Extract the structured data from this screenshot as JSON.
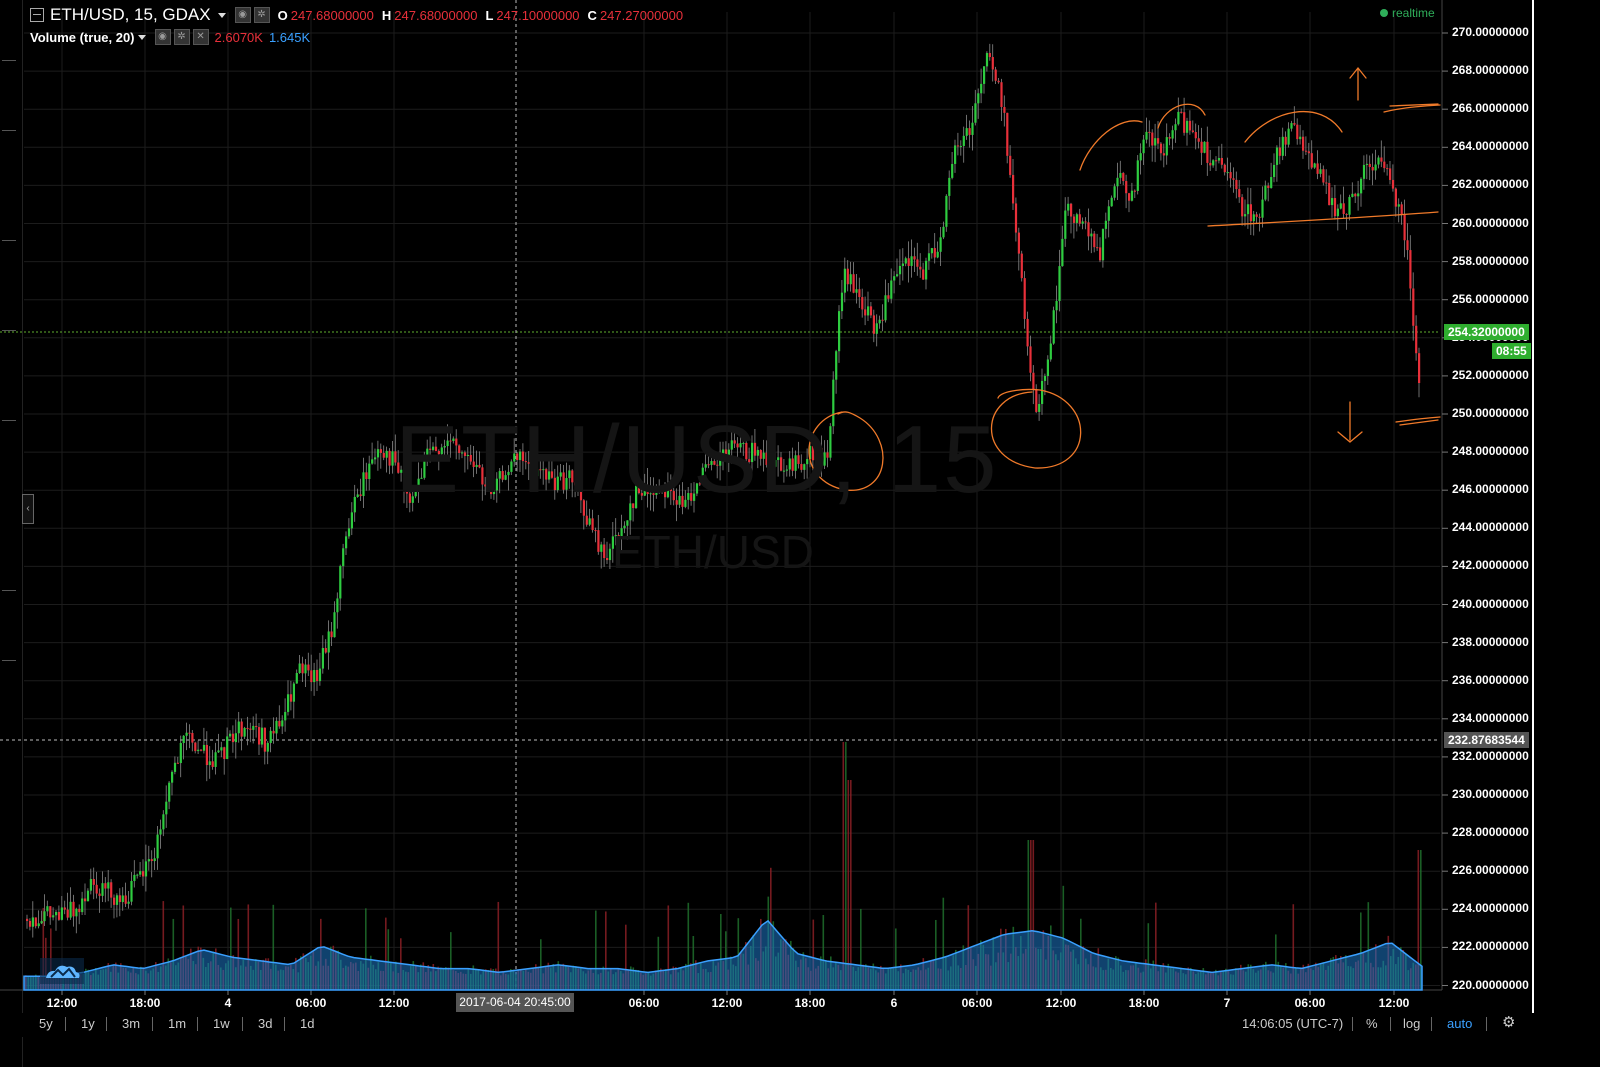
{
  "legend": {
    "symbol": "ETH/USD, 15, GDAX",
    "ohlc": [
      {
        "key": "O",
        "value": "247.68000000"
      },
      {
        "key": "H",
        "value": "247.68000000"
      },
      {
        "key": "L",
        "value": "247.10000000"
      },
      {
        "key": "C",
        "value": "247.27000000"
      }
    ],
    "volume_label": "Volume (true, 20)",
    "volume_a": "2.6070K",
    "volume_b": "1.645K"
  },
  "realtime_label": "realtime",
  "watermark": {
    "main": "ETH/USD, 15",
    "sub": "ETH/USD"
  },
  "current_price": {
    "value": "254.32000000",
    "countdown": "08:55"
  },
  "crosshair_price": "232.87683544",
  "crosshair_time": "2017-06-04 20:45:00",
  "timeframes": [
    "5y",
    "1y",
    "3m",
    "1m",
    "1w",
    "3d",
    "1d"
  ],
  "status": {
    "time": "14:06:05 (UTC-7)",
    "percent": "%",
    "log": "log",
    "auto": "auto"
  },
  "icons": {
    "settings": "gear-icon",
    "logo": "tradingview-cloud-icon",
    "collapse": "collapse-icon"
  },
  "colors": {
    "up": "#2ecc40",
    "down": "#e8303a",
    "volume_ma": "#1e78c8",
    "annotation": "#f07a2a",
    "price_line": "#5fae2e"
  },
  "chart_data": {
    "type": "candlestick",
    "ylim": [
      220,
      270
    ],
    "y_ticks": [
      "270.00000000",
      "268.00000000",
      "266.00000000",
      "264.00000000",
      "262.00000000",
      "260.00000000",
      "258.00000000",
      "256.00000000",
      "254.00000000",
      "252.00000000",
      "250.00000000",
      "248.00000000",
      "246.00000000",
      "244.00000000",
      "242.00000000",
      "240.00000000",
      "238.00000000",
      "236.00000000",
      "234.00000000",
      "232.00000000",
      "230.00000000",
      "228.00000000",
      "226.00000000",
      "224.00000000",
      "222.00000000",
      "220.00000000"
    ],
    "x_ticks": [
      "12:00",
      "18:00",
      "4",
      "06:00",
      "12:00",
      "06:00",
      "12:00",
      "18:00",
      "6",
      "06:00",
      "12:00",
      "18:00",
      "7",
      "06:00",
      "12:00"
    ],
    "price_path": [
      223.5,
      223.7,
      223.6,
      224.0,
      225.5,
      225.0,
      224.5,
      225.6,
      227.0,
      231.0,
      233.0,
      232.2,
      231.8,
      233.4,
      233.6,
      232.7,
      234.0,
      236.5,
      236.0,
      238.5,
      244.0,
      246.5,
      248.4,
      247.4,
      245.2,
      247.7,
      248.6,
      248.0,
      247.4,
      245.5,
      247.3,
      247.6,
      247.0,
      246.5,
      246.6,
      244.5,
      242.5,
      243.7,
      245.8,
      246.0,
      246.2,
      245.0,
      246.8,
      247.2,
      248.2,
      248.0,
      247.8,
      247.5,
      247.3,
      248.0,
      247.6,
      257.4,
      256.2,
      254.3,
      256.6,
      258.0,
      257.5,
      259.0,
      263.8,
      265.2,
      269.0,
      266.2,
      258.0,
      250.0,
      254.0,
      261.0,
      260.0,
      258.2,
      262.4,
      261.5,
      264.6,
      263.6,
      265.5,
      264.8,
      263.4,
      262.5,
      260.8,
      260.3,
      263.6,
      264.9,
      264.0,
      262.0,
      260.4,
      261.5,
      263.4,
      262.7,
      260.4,
      252.1
    ],
    "volume_profile": [
      0.1,
      0.1,
      0.2,
      0.4,
      0.3,
      0.5,
      0.8,
      0.6,
      0.5,
      0.4,
      0.9,
      0.6,
      0.5,
      0.4,
      0.3,
      0.3,
      0.2,
      0.3,
      0.4,
      0.3,
      0.3,
      0.2,
      0.3,
      0.5,
      0.6,
      1.6,
      0.7,
      0.5,
      0.4,
      0.3,
      0.4,
      0.6,
      0.9,
      1.2,
      1.3,
      1.1,
      0.7,
      0.5,
      0.4,
      0.3,
      0.2,
      0.3,
      0.4,
      0.3,
      0.5,
      0.7,
      1.0,
      0.4
    ]
  }
}
